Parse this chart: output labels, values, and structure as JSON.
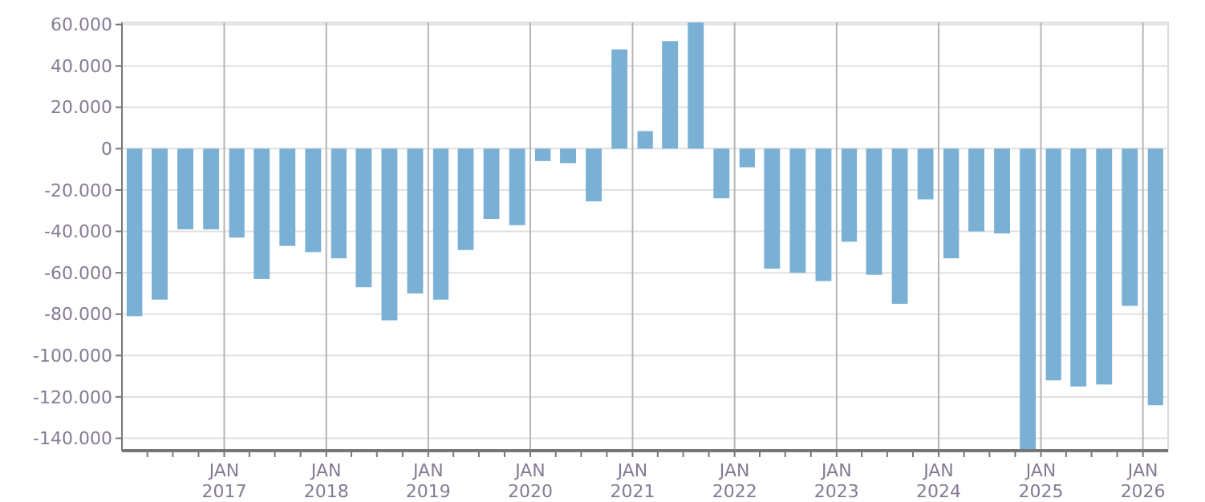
{
  "chart_data": {
    "type": "bar",
    "color": "#7ab0d3",
    "x": [
      "2016-02-15",
      "2016-05-15",
      "2016-08-15",
      "2016-11-15",
      "2017-02-15",
      "2017-05-15",
      "2017-08-15",
      "2017-11-15",
      "2018-02-15",
      "2018-05-15",
      "2018-08-15",
      "2018-11-15",
      "2019-02-15",
      "2019-05-15",
      "2019-08-15",
      "2019-11-15",
      "2020-02-15",
      "2020-05-15",
      "2020-08-15",
      "2020-11-15",
      "2021-02-15",
      "2021-05-15",
      "2021-08-15",
      "2021-11-15",
      "2022-02-15",
      "2022-05-15",
      "2022-08-15",
      "2022-11-15",
      "2023-02-15",
      "2023-05-15",
      "2023-08-15",
      "2023-11-15",
      "2024-02-15",
      "2024-05-15",
      "2024-08-15",
      "2024-11-15",
      "2025-02-15",
      "2025-05-15",
      "2025-08-15",
      "2025-11-15",
      "2026-02-15"
    ],
    "values": [
      -81000,
      -73000,
      -39000,
      -39000,
      -43000,
      -63000,
      -47000,
      -50000,
      -53000,
      -67000,
      -83000,
      -70000,
      -73000,
      -49000,
      -34000,
      -37000,
      -6000,
      -7000,
      -25500,
      48000,
      8500,
      52000,
      61000,
      -24000,
      -9000,
      -58000,
      -60000,
      -64000,
      -45000,
      -61000,
      -75000,
      -24500,
      -53000,
      -40000,
      -41000,
      -146000,
      -112000,
      -115000,
      -114000,
      -76000,
      -124000
    ],
    "xlim": [
      "2016-01-01",
      "2026-04-01"
    ],
    "xticks": [
      {
        "value": "2016-04-01",
        "label": null
      },
      {
        "value": "2016-07-01",
        "label": null
      },
      {
        "value": "2016-10-01",
        "label": null
      },
      {
        "value": "2017-01-01",
        "label": "JAN 2017"
      },
      {
        "value": "2017-04-01",
        "label": null
      },
      {
        "value": "2017-07-01",
        "label": null
      },
      {
        "value": "2017-10-01",
        "label": null
      },
      {
        "value": "2018-01-01",
        "label": "JAN 2018"
      },
      {
        "value": "2018-04-01",
        "label": null
      },
      {
        "value": "2018-07-01",
        "label": null
      },
      {
        "value": "2018-10-01",
        "label": null
      },
      {
        "value": "2019-01-01",
        "label": "JAN 2019"
      },
      {
        "value": "2019-04-01",
        "label": null
      },
      {
        "value": "2019-07-01",
        "label": null
      },
      {
        "value": "2019-10-01",
        "label": null
      },
      {
        "value": "2020-01-01",
        "label": "JAN 2020"
      },
      {
        "value": "2020-04-01",
        "label": null
      },
      {
        "value": "2020-07-01",
        "label": null
      },
      {
        "value": "2020-10-01",
        "label": null
      },
      {
        "value": "2021-01-01",
        "label": "JAN 2021"
      },
      {
        "value": "2021-04-01",
        "label": null
      },
      {
        "value": "2021-07-01",
        "label": null
      },
      {
        "value": "2021-10-01",
        "label": null
      },
      {
        "value": "2022-01-01",
        "label": "JAN 2022"
      },
      {
        "value": "2022-04-01",
        "label": null
      },
      {
        "value": "2022-07-01",
        "label": null
      },
      {
        "value": "2022-10-01",
        "label": null
      },
      {
        "value": "2023-01-01",
        "label": "JAN 2023"
      },
      {
        "value": "2023-04-01",
        "label": null
      },
      {
        "value": "2023-07-01",
        "label": null
      },
      {
        "value": "2023-10-01",
        "label": null
      },
      {
        "value": "2024-01-01",
        "label": "JAN 2024"
      },
      {
        "value": "2024-04-01",
        "label": null
      },
      {
        "value": "2024-07-01",
        "label": null
      },
      {
        "value": "2024-10-01",
        "label": null
      },
      {
        "value": "2025-01-01",
        "label": "JAN 2025"
      },
      {
        "value": "2025-04-01",
        "label": null
      },
      {
        "value": "2025-07-01",
        "label": null
      },
      {
        "value": "2025-10-01",
        "label": null
      },
      {
        "value": "2026-01-01",
        "label": "JAN 2026"
      }
    ],
    "ylim": [
      -146000,
      61000
    ],
    "yticks": [
      {
        "value": -140000,
        "label": "-140.000"
      },
      {
        "value": -120000,
        "label": "-120.000"
      },
      {
        "value": -100000,
        "label": "-100.000"
      },
      {
        "value": -80000,
        "label": "-80.000"
      },
      {
        "value": -60000,
        "label": "-60.000"
      },
      {
        "value": -40000,
        "label": "-40.000"
      },
      {
        "value": -20000,
        "label": "-20.000"
      },
      0,
      {
        "value": 20000,
        "label": "20.000"
      },
      {
        "value": 40000,
        "label": "40.000"
      },
      {
        "value": 60000,
        "label": "60.000"
      }
    ],
    "grid": true
  }
}
